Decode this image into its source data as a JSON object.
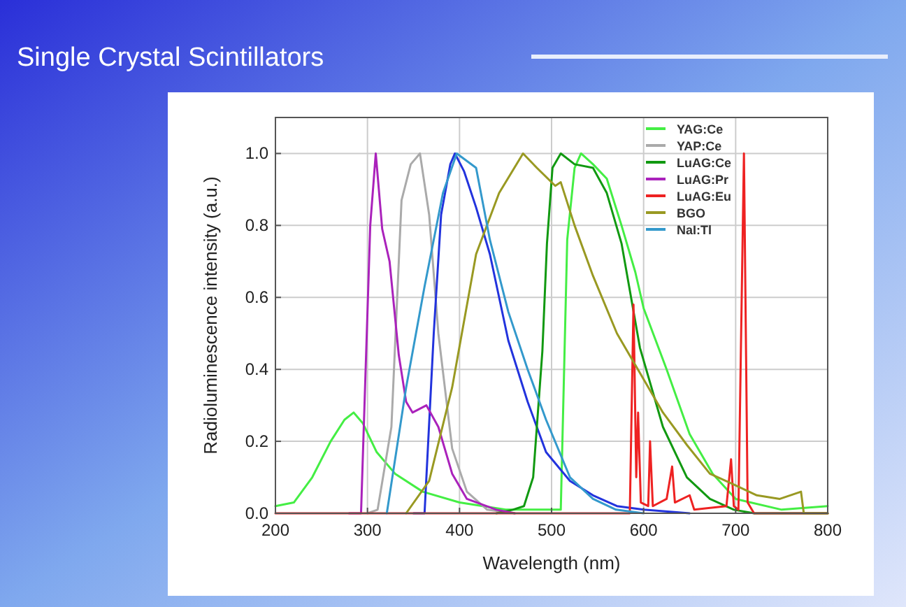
{
  "chart_data": {
    "type": "line",
    "title": "Single Crystal Scintillators",
    "xlabel": "Wavelength (nm)",
    "ylabel": "Radioluminescence intensity (a.u.)",
    "xlim": [
      200,
      800
    ],
    "ylim": [
      0,
      1.1
    ],
    "xticks": [
      200,
      300,
      400,
      500,
      600,
      700,
      800
    ],
    "yticks": [
      {
        "value": 0,
        "label": "0.0"
      },
      {
        "value": 0.2,
        "label": "0.2"
      },
      {
        "value": 0.4,
        "label": "0.4"
      },
      {
        "value": 0.6,
        "label": "0.6"
      },
      {
        "value": 0.8,
        "label": "0.8"
      },
      {
        "value": 1,
        "label": "1.0"
      }
    ],
    "grid": true,
    "legend": "top right",
    "line_style": "solid",
    "series": [
      {
        "name": "YAG:Ce",
        "color": "#44ee44",
        "x": [
          200,
          220,
          240,
          260,
          275,
          285,
          295,
          310,
          330,
          360,
          400,
          450,
          500,
          510,
          517,
          525,
          532,
          545,
          560,
          576,
          591,
          600,
          625,
          650,
          675,
          700,
          750,
          800
        ],
        "values": [
          0.02,
          0.03,
          0.1,
          0.2,
          0.26,
          0.28,
          0.25,
          0.17,
          0.11,
          0.06,
          0.03,
          0.01,
          0.01,
          0.01,
          0.76,
          0.96,
          1.0,
          0.97,
          0.93,
          0.8,
          0.67,
          0.57,
          0.4,
          0.22,
          0.11,
          0.04,
          0.01,
          0.02
        ]
      },
      {
        "name": "YAP:Ce",
        "color": "#aaaaaa",
        "x": [
          300,
          311,
          326,
          337,
          347,
          357,
          367,
          377,
          392,
          408,
          430,
          460
        ],
        "values": [
          0,
          0.01,
          0.24,
          0.87,
          0.97,
          1.0,
          0.83,
          0.5,
          0.18,
          0.06,
          0.01,
          0
        ]
      },
      {
        "color": "#2233dd",
        "x": [
          350,
          362,
          372,
          380,
          390,
          395,
          405,
          418,
          433,
          453,
          474,
          494,
          520,
          545,
          571,
          600,
          650
        ],
        "values": [
          0,
          0,
          0.5,
          0.83,
          0.97,
          1.0,
          0.95,
          0.85,
          0.72,
          0.48,
          0.31,
          0.17,
          0.09,
          0.05,
          0.02,
          0.01,
          0
        ]
      },
      {
        "name": "LuAG:Ce",
        "color": "#119911",
        "x": [
          440,
          458,
          470,
          480,
          490,
          495,
          501,
          510,
          525,
          545,
          560,
          576,
          596,
          621,
          647,
          672,
          698,
          720,
          800
        ],
        "values": [
          0,
          0.01,
          0.02,
          0.1,
          0.45,
          0.75,
          0.96,
          1.0,
          0.97,
          0.96,
          0.89,
          0.75,
          0.46,
          0.24,
          0.1,
          0.04,
          0.01,
          0,
          0
        ]
      },
      {
        "name": "LuAG:Pr",
        "color": "#aa22bb",
        "x": [
          280,
          293,
          303,
          309,
          316,
          324,
          334,
          342,
          349,
          364,
          377,
          392,
          408,
          440,
          460
        ],
        "values": [
          0,
          0,
          0.8,
          1.0,
          0.79,
          0.7,
          0.44,
          0.31,
          0.28,
          0.3,
          0.24,
          0.11,
          0.04,
          0.01,
          0
        ]
      },
      {
        "name": "LuAG:Eu",
        "color": "#ee2222",
        "x": [
          200,
          585,
          589,
          592,
          594,
          597,
          605,
          607,
          610,
          625,
          631,
          634,
          650,
          655,
          690,
          695,
          698,
          703,
          709,
          713,
          720,
          800
        ],
        "values": [
          0,
          0,
          0.58,
          0.1,
          0.28,
          0.03,
          0.02,
          0.2,
          0.02,
          0.04,
          0.13,
          0.03,
          0.05,
          0.01,
          0.02,
          0.15,
          0.02,
          0.01,
          1.0,
          0.03,
          0,
          0
        ]
      },
      {
        "name": "BGO",
        "color": "#999922",
        "x": [
          342,
          367,
          392,
          418,
          443,
          469,
          484,
          504,
          510,
          525,
          545,
          571,
          596,
          621,
          647,
          672,
          698,
          723,
          748,
          771,
          774,
          800
        ],
        "values": [
          0,
          0.09,
          0.35,
          0.72,
          0.89,
          1.0,
          0.96,
          0.91,
          0.92,
          0.8,
          0.66,
          0.5,
          0.39,
          0.28,
          0.19,
          0.11,
          0.08,
          0.05,
          0.04,
          0.06,
          0,
          0
        ]
      },
      {
        "name": "NaI:Tl",
        "color": "#3399cc",
        "x": [
          321,
          342,
          362,
          382,
          397,
          418,
          433,
          453,
          474,
          494,
          520,
          545,
          570,
          600
        ],
        "values": [
          0,
          0.35,
          0.63,
          0.89,
          1.0,
          0.96,
          0.76,
          0.56,
          0.4,
          0.26,
          0.1,
          0.04,
          0.01,
          0
        ]
      }
    ]
  }
}
